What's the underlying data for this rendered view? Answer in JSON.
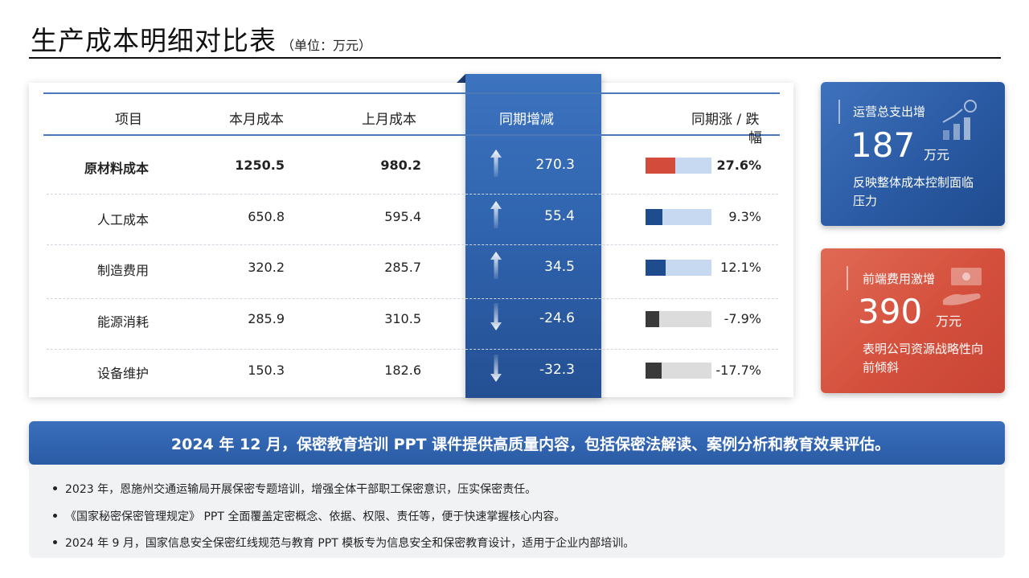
{
  "header": {
    "title": "生产成本明细对比表",
    "unit": "（单位：万元）"
  },
  "table": {
    "columns": [
      "项目",
      "本月成本",
      "上月成本",
      "同期增减",
      "同期涨 / 跌",
      "幅"
    ],
    "rows": [
      {
        "item": "原材料成本",
        "current": "1250.5",
        "previous": "980.2",
        "change": "270.3",
        "direction": "up",
        "percent": "27.6%",
        "fill_fraction": 0.45,
        "bar_color": "#d24b3b",
        "track_color": "#c6d9f1",
        "bold": true
      },
      {
        "item": "人工成本",
        "current": "650.8",
        "previous": "595.4",
        "change": "55.4",
        "direction": "up",
        "percent": "9.3%",
        "fill_fraction": 0.25,
        "bar_color": "#1f4b8f",
        "track_color": "#c6d9f1",
        "bold": false
      },
      {
        "item": "制造费用",
        "current": "320.2",
        "previous": "285.7",
        "change": "34.5",
        "direction": "up",
        "percent": "12.1%",
        "fill_fraction": 0.31,
        "bar_color": "#1f4b8f",
        "track_color": "#c6d9f1",
        "bold": false
      },
      {
        "item": "能源消耗",
        "current": "285.9",
        "previous": "310.5",
        "change": "-24.6",
        "direction": "down",
        "percent": "-7.9%",
        "fill_fraction": 0.21,
        "bar_color": "#3a3a3a",
        "track_color": "#dcdcdc",
        "bold": false
      },
      {
        "item": "设备维护",
        "current": "150.3",
        "previous": "182.6",
        "change": "-32.3",
        "direction": "down",
        "percent": "-17.7%",
        "fill_fraction": 0.24,
        "bar_color": "#3a3a3a",
        "track_color": "#dcdcdc",
        "bold": false
      }
    ]
  },
  "cards": {
    "blue": {
      "label": "运营总支出增",
      "value": "187",
      "unit": "万元",
      "desc": "反映整体成本控制面临压力",
      "icon": "growth-chart-icon"
    },
    "red": {
      "label": "前端费用激增",
      "value": "390",
      "unit": "万元",
      "desc": "表明公司资源战略性向前倾斜",
      "icon": "money-hand-icon"
    }
  },
  "banner": {
    "text": "2024 年 12 月，保密教育培训 PPT 课件提供高质量内容，包括保密法解读、案例分析和教育效果评估。"
  },
  "notes": [
    "2023 年，恩施州交通运输局开展保密专题培训，增强全体干部职工保密意识，压实保密责任。",
    "《国家秘密保密管理规定》 PPT 全面覆盖定密概念、依据、权限、责任等，便于快速掌握核心内容。",
    "2024 年 9 月，国家信息安全保密红线规范与教育 PPT 模板专为信息安全和保密教育设计，适用于企业内部培训。"
  ]
}
